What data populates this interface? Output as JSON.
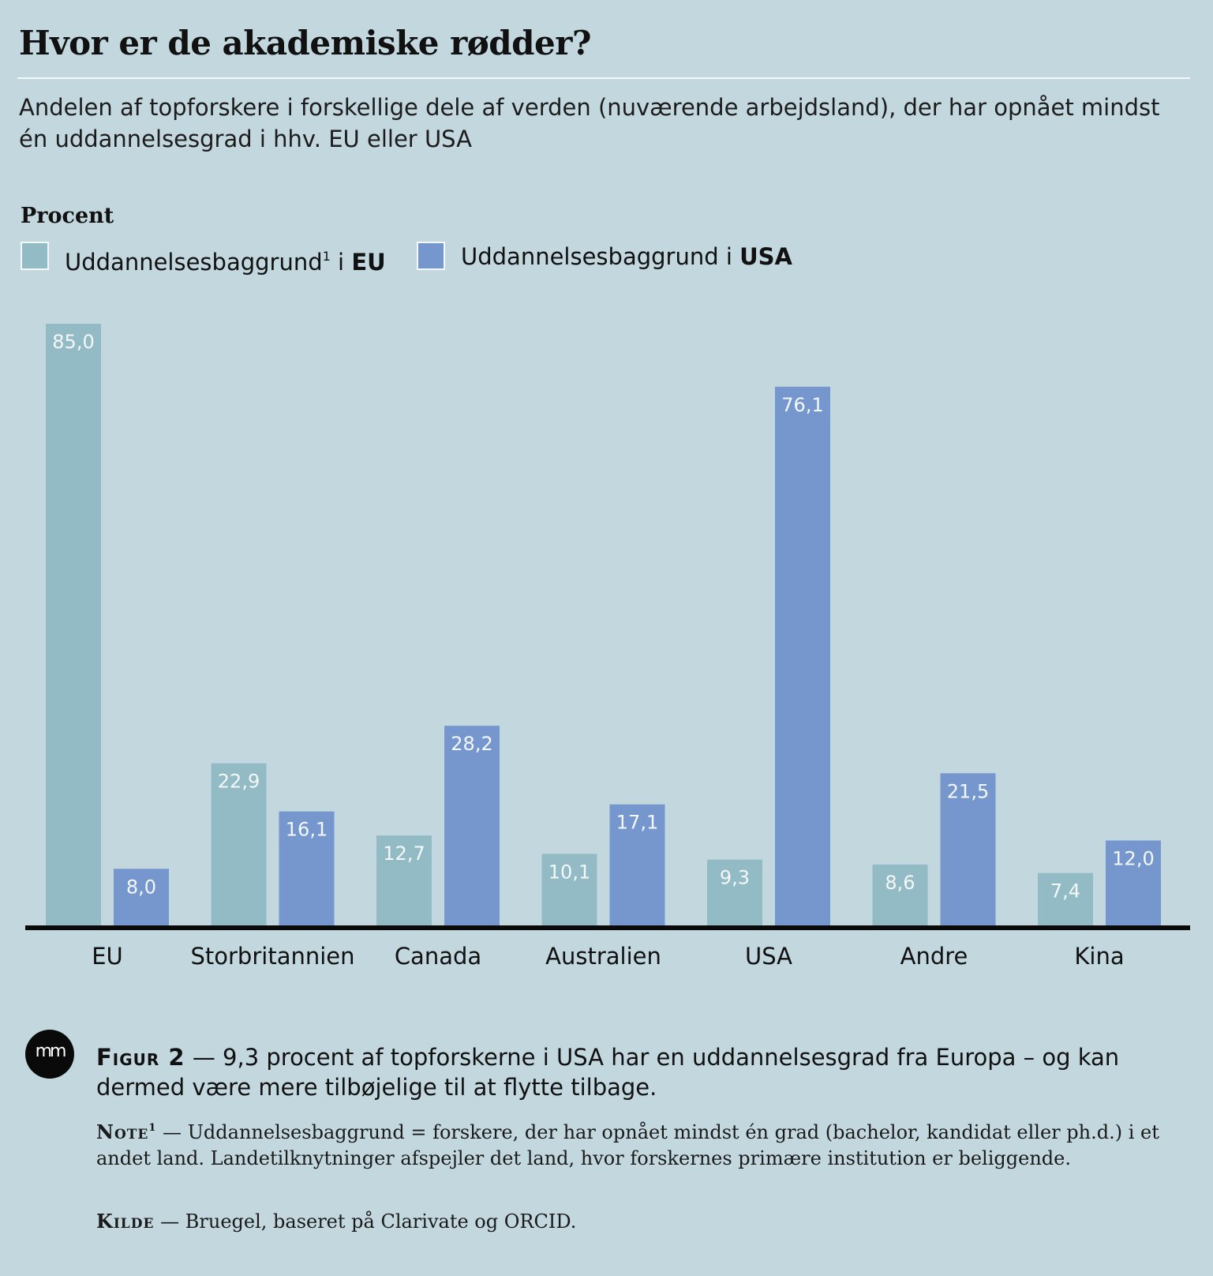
{
  "header": {
    "title": "Hvor er de akademiske rødder?",
    "subtitle": "Andelen af topforskere i forskellige dele af verden (nuværende arbejdsland), der har opnået mindst én uddannelsesgrad i hhv. EU eller USA"
  },
  "legend": {
    "unit": "Procent",
    "eu_label": "Uddannelsesbaggrund",
    "eu_sup": "1",
    "eu_connector": "i",
    "eu_bold": "EU",
    "usa_label": "Uddannelsesbaggrund i",
    "usa_bold": "USA"
  },
  "chart_data": {
    "type": "bar",
    "title": "Hvor er de akademiske rødder?",
    "ylabel": "Procent",
    "xlabel": "",
    "categories": [
      "EU",
      "Storbritannien",
      "Canada",
      "Australien",
      "USA",
      "Andre",
      "Kina"
    ],
    "series": [
      {
        "name": "Uddannelsesbaggrund i EU",
        "color": "#93bbc5",
        "values": [
          85.0,
          22.9,
          12.7,
          10.1,
          9.3,
          8.6,
          7.4
        ]
      },
      {
        "name": "Uddannelsesbaggrund i USA",
        "color": "#7597ce",
        "values": [
          8.0,
          16.1,
          28.2,
          17.1,
          76.1,
          21.5,
          12.0
        ]
      }
    ],
    "value_labels": [
      [
        "85,0",
        "22,9",
        "12,7",
        "10,1",
        "9,3",
        "8,6",
        "7,4"
      ],
      [
        "8,0",
        "16,1",
        "28,2",
        "17,1",
        "76,1",
        "21,5",
        "12,0"
      ]
    ],
    "ylim": [
      0,
      85
    ],
    "grid": false,
    "legend_position": "top-left"
  },
  "logo": {
    "text": "mm"
  },
  "footer": {
    "figure_lead": "Figur 2",
    "figure_dash": "—",
    "figure_text": "9,3 procent af topforskerne i USA har en uddannelsesgrad fra Europa – og kan dermed være mere tilbøjelige til at flytte tilbage.",
    "note_lead": "Note",
    "note_sup": "1",
    "note_dash": "—",
    "note_text": "Uddannelsesbaggrund = forskere, der har opnået mindst én grad (bachelor, kandidat eller ph.d.) i et andet land. Landetilknytninger afspejler det land, hvor forskernes primære institution er beliggende.",
    "source_lead": "Kilde",
    "source_dash": "—",
    "source_text": "Bruegel, baseret på Clarivate og ORCID."
  }
}
